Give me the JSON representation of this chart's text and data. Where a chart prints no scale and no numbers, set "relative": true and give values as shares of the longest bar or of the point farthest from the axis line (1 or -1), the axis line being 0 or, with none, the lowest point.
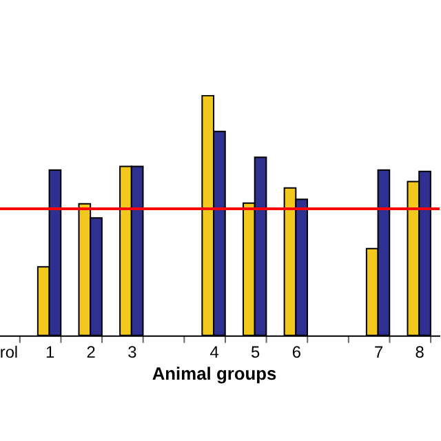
{
  "chart_data": {
    "type": "bar",
    "relative": true,
    "xlabel": "Animal groups",
    "categories": [
      "rol",
      "1",
      "2",
      "3",
      null,
      "4",
      "5",
      "6",
      null,
      "7",
      "8"
    ],
    "series": [
      {
        "color": "#f2c81e",
        "values": [
          null,
          0.286,
          0.549,
          0.705,
          null,
          1,
          0.552,
          0.615,
          null,
          0.362,
          0.642
        ]
      },
      {
        "color": "#2e318f",
        "values": [
          null,
          0.69,
          0.49,
          0.705,
          null,
          0.851,
          0.743,
          0.568,
          null,
          0.69,
          0.684
        ]
      }
    ],
    "ref_lines": [
      {
        "axis": "y",
        "value": 0.528,
        "color": "#ff0000"
      }
    ],
    "grid": false,
    "legend": false
  }
}
